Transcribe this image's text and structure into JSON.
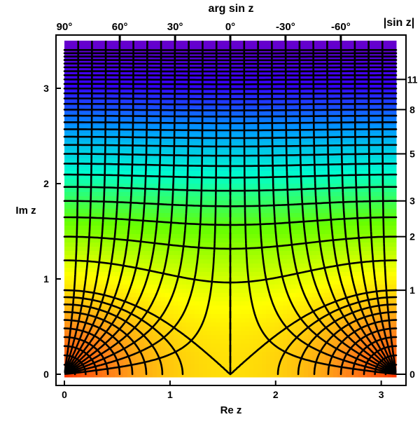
{
  "chart_data": {
    "type": "contour",
    "title": "arg sin z",
    "xlabel": "Re z",
    "ylabel": "Im z",
    "right_label": "|sin z|",
    "xlim": [
      0,
      3.14159
    ],
    "ylim": [
      0,
      3.5
    ],
    "x_ticks": [
      0,
      1,
      2,
      3
    ],
    "x_tick_labels": [
      "0",
      "1",
      "2",
      "3"
    ],
    "y_ticks": [
      0,
      1,
      2,
      3
    ],
    "y_tick_labels": [
      "0",
      "1",
      "2",
      "3"
    ],
    "top_tick_labels": [
      "90°",
      "60°",
      "30°",
      "0°",
      "-30°",
      "-60°"
    ],
    "top_tick_angles_deg": [
      90,
      60,
      30,
      0,
      -30,
      -60
    ],
    "right_tick_labels": [
      "0",
      "1",
      "2",
      "3",
      "5",
      "8",
      "11"
    ],
    "right_tick_values": [
      0,
      1,
      2,
      3,
      5,
      8,
      11
    ],
    "modulus_contour_levels": [
      0.1,
      0.2,
      0.3,
      0.4,
      0.5,
      0.6,
      0.7,
      0.8,
      0.9,
      1,
      1.5,
      2,
      2.5,
      3,
      3.5,
      4,
      4.5,
      5,
      5.5,
      6,
      6.5,
      7,
      7.5,
      8,
      8.5,
      9,
      9.5,
      10,
      10.5,
      11,
      11.5,
      12,
      12.5,
      13,
      13.5,
      14,
      14.5,
      15
    ],
    "argument_contour_step_deg": 7.5,
    "grid": false,
    "colormap": [
      "#ff3300",
      "#ff8c1a",
      "#ffff00",
      "#66ff00",
      "#00ffcc",
      "#0099ff",
      "#3300ff",
      "#6600cc"
    ]
  }
}
